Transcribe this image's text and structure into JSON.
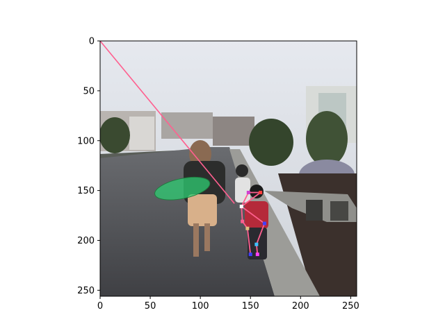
{
  "chart_data": {
    "type": "scatter",
    "title": "",
    "xlabel": "",
    "ylabel": "",
    "xlim": [
      0,
      256
    ],
    "ylim": [
      256,
      0
    ],
    "y_inverted": true,
    "grid": false,
    "legend": "none",
    "xticks": [
      0,
      50,
      100,
      150,
      200,
      250
    ],
    "yticks": [
      0,
      50,
      100,
      150,
      200,
      250
    ],
    "image_background": "photo of a woman and two children walking down a residential street at dusk",
    "skeleton_color": "#ff5f8f",
    "limb_line": {
      "x": [
        0,
        134
      ],
      "y": [
        0,
        163
      ]
    },
    "keypoints": [
      {
        "x": 141,
        "y": 166,
        "color": "#ffffff"
      },
      {
        "x": 148,
        "y": 152,
        "color": "#d040d0"
      },
      {
        "x": 160,
        "y": 152,
        "color": "#ff4040"
      },
      {
        "x": 142,
        "y": 181,
        "color": "#ff5f8f"
      },
      {
        "x": 164,
        "y": 183,
        "color": "#4040ff"
      },
      {
        "x": 147,
        "y": 188,
        "color": "#e0c080"
      },
      {
        "x": 156,
        "y": 204,
        "color": "#40c0ff"
      },
      {
        "x": 150,
        "y": 214,
        "color": "#4040ff"
      },
      {
        "x": 157,
        "y": 214,
        "color": "#ff40ff"
      }
    ],
    "skeleton_edges": [
      [
        0,
        1
      ],
      [
        0,
        2
      ],
      [
        0,
        3
      ],
      [
        0,
        4
      ],
      [
        3,
        5
      ],
      [
        4,
        6
      ],
      [
        5,
        7
      ],
      [
        6,
        8
      ],
      [
        1,
        2
      ]
    ],
    "highlight_shape": {
      "name": "skateboard",
      "color": "#2ecc71",
      "center": [
        82,
        148
      ],
      "semi_axes": [
        28,
        10
      ]
    }
  }
}
